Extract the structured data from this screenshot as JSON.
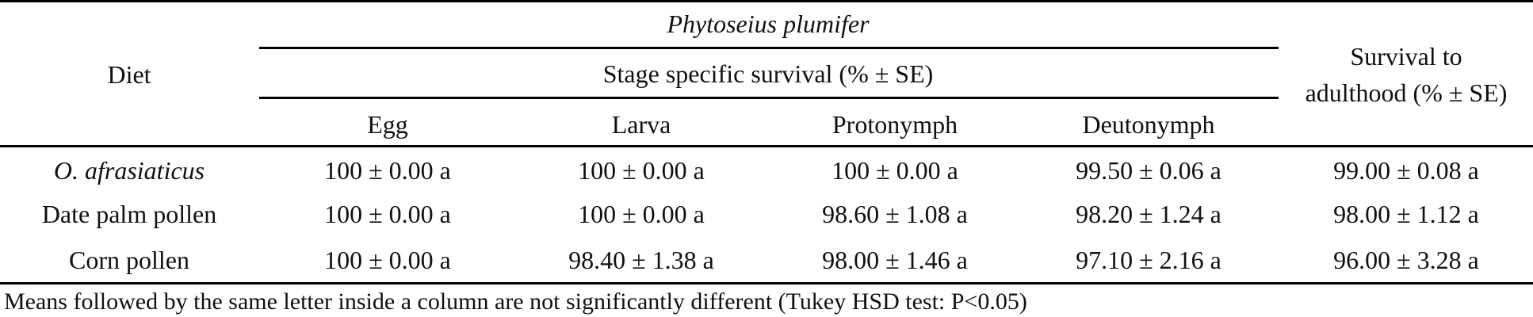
{
  "table": {
    "species": "Phytoseius plumifer",
    "header": {
      "diet": "Diet",
      "stage_specific": "Stage specific survival (% ± SE)",
      "stages": [
        "Egg",
        "Larva",
        "Protonymph",
        "Deutonymph"
      ],
      "survival_to_adulthood_line1": "Survival to",
      "survival_to_adulthood_line2": "adulthood (% ± SE)"
    },
    "rows": [
      {
        "diet": "O. afrasiaticus",
        "egg": "100 ± 0.00 a",
        "larva": "100 ± 0.00 a",
        "protonymph": "100 ± 0.00 a",
        "deutonymph": "99.50 ± 0.06 a",
        "survival": "99.00 ± 0.08 a"
      },
      {
        "diet": "Date palm pollen",
        "egg": "100 ± 0.00 a",
        "larva": "100 ± 0.00 a",
        "protonymph": "98.60 ± 1.08 a",
        "deutonymph": "98.20 ± 1.24 a",
        "survival": "98.00 ± 1.12 a"
      },
      {
        "diet": "Corn pollen",
        "egg": "100 ± 0.00 a",
        "larva": "98.40 ± 1.38 a",
        "protonymph": "98.00 ± 1.46 a",
        "deutonymph": "97.10 ± 2.16 a",
        "survival": "96.00 ± 3.28 a"
      }
    ],
    "footnote": "Means followed by the same letter inside a column are not significantly different (Tukey HSD test: P<0.05)"
  }
}
